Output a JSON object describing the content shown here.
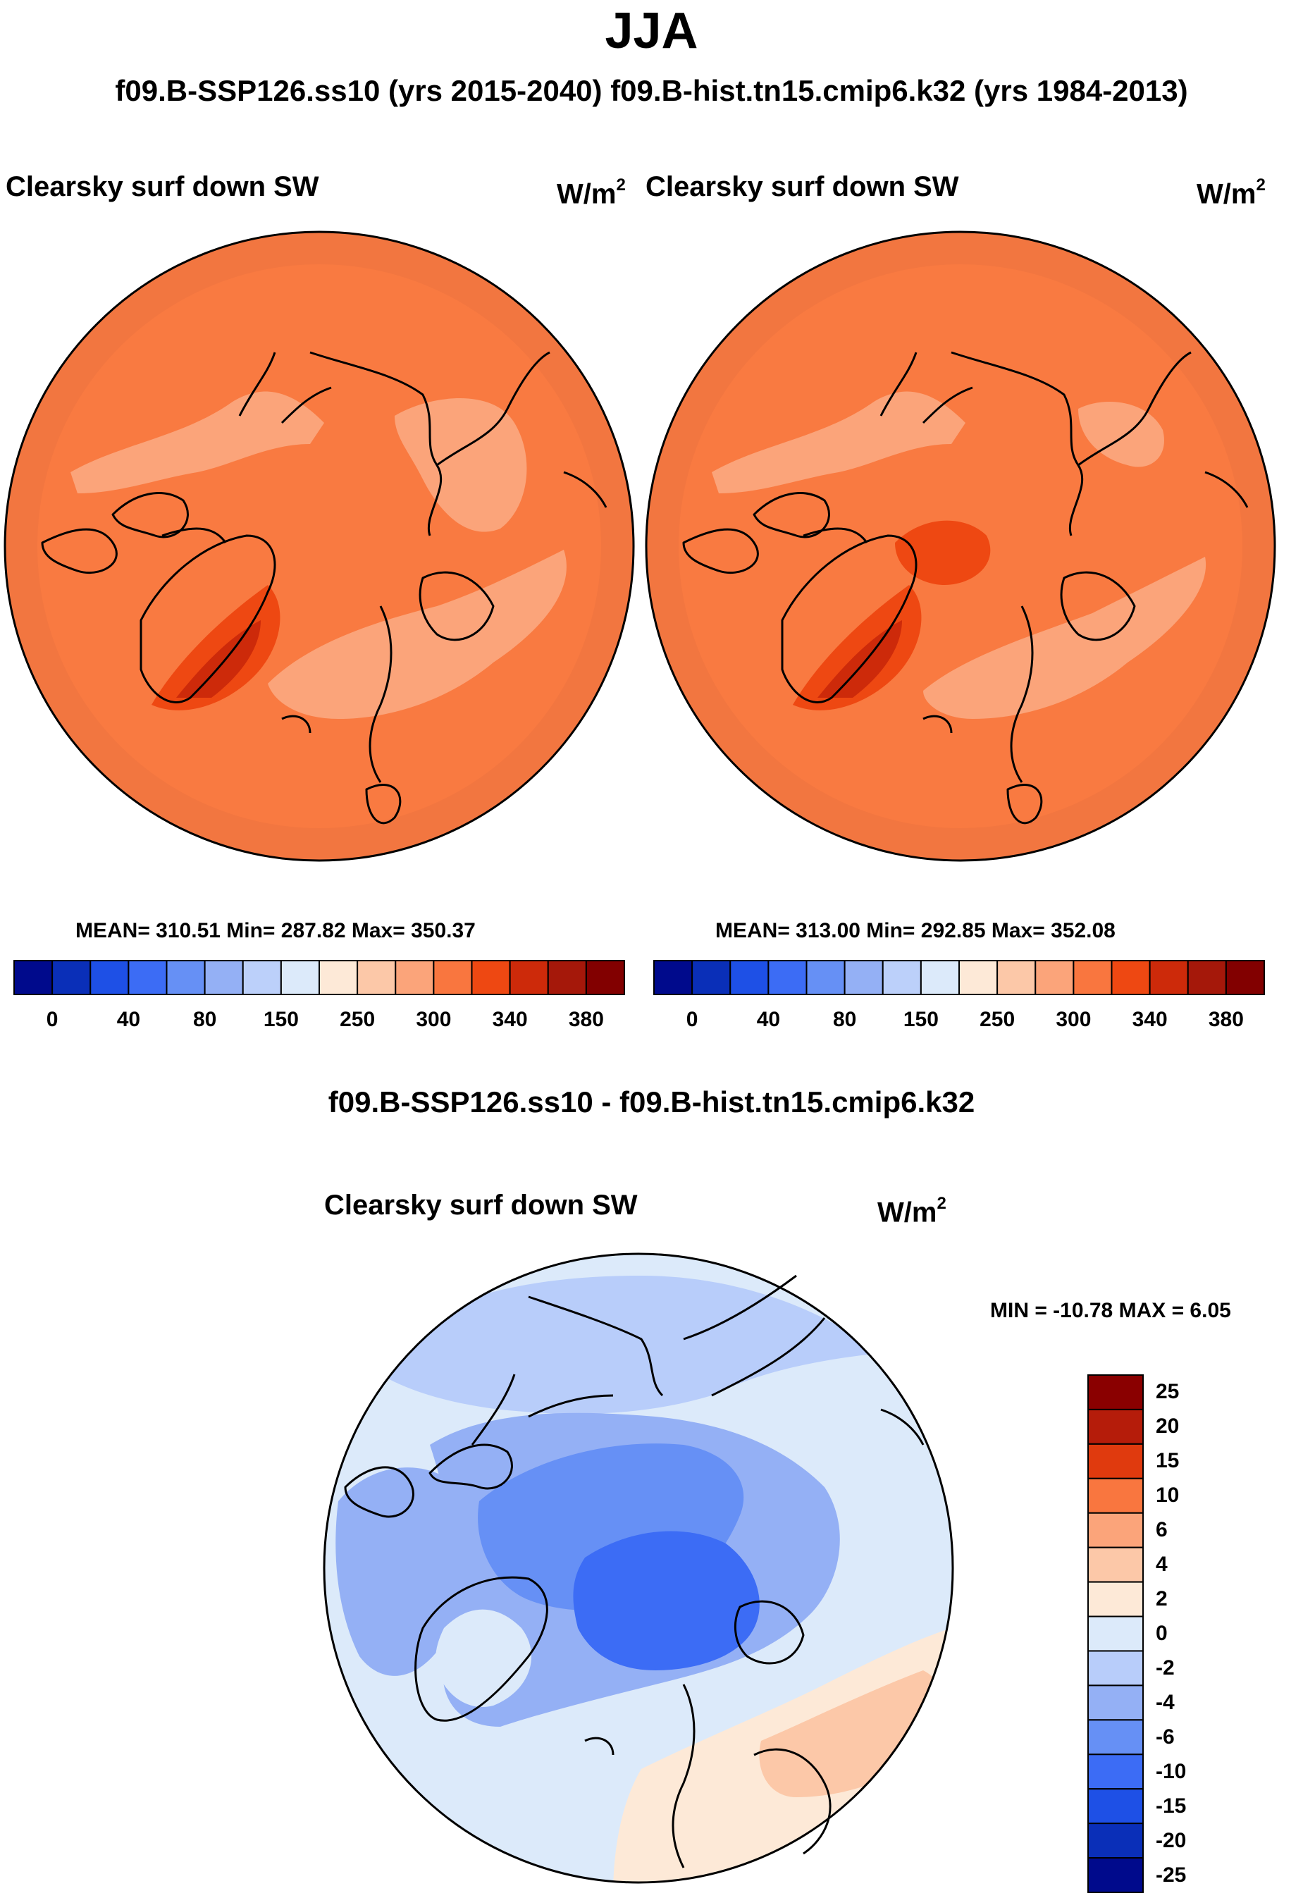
{
  "season": "JJA",
  "subtitle": "f09.B-SSP126.ss10 (yrs 2015-2040)  f09.B-hist.tn15.cmip6.k32 (yrs 1984-2013)",
  "left_panel": {
    "title": "Clearsky surf down SW",
    "units_base": "W/m",
    "units_exp": "2",
    "stats": "MEAN= 310.51  Min= 287.82  Max= 350.37"
  },
  "right_panel": {
    "title": "Clearsky surf down SW",
    "units_base": "W/m",
    "units_exp": "2",
    "stats": "MEAN= 313.00  Min= 292.85  Max= 352.08"
  },
  "abs_colorbar": {
    "colors": [
      "#000a8c",
      "#0a2fb8",
      "#1e50e6",
      "#3c6cf5",
      "#6690f5",
      "#94b0f5",
      "#bcd0fa",
      "#dceafa",
      "#fde9d7",
      "#fcc8a8",
      "#fba47a",
      "#f9763f",
      "#ee4812",
      "#cd2a0a",
      "#a5180a",
      "#820000"
    ],
    "labels": [
      "0",
      "40",
      "80",
      "150",
      "250",
      "300",
      "340",
      "380"
    ]
  },
  "diff_title": "f09.B-SSP126.ss10 - f09.B-hist.tn15.cmip6.k32",
  "diff_panel": {
    "title": "Clearsky surf down SW",
    "units_base": "W/m",
    "units_exp": "2",
    "stats": "MIN = -10.78 MAX =    6.05"
  },
  "diff_colorbar": {
    "colors_top_to_bottom": [
      "#8a0000",
      "#b51c0a",
      "#e03a0e",
      "#f9763f",
      "#fba47a",
      "#fcc8a8",
      "#fde9d7",
      "#dceafa",
      "#b8cdfa",
      "#94b0f5",
      "#6690f5",
      "#3c6cf5",
      "#1e50e6",
      "#0a2fb8",
      "#000a8c"
    ],
    "labels_top_to_bottom": [
      "25",
      "20",
      "15",
      "10",
      "6",
      "4",
      "2",
      "0",
      "-2",
      "-4",
      "-6",
      "-10",
      "-15",
      "-20",
      "-25"
    ]
  },
  "map_colors": {
    "outer_ring": "#f27640",
    "interior": "#f97a41",
    "light_patch": "#fba47a",
    "dark_patch": "#ee4812",
    "darkest_patch": "#cd2a0a",
    "diff_base": "#dceafa",
    "diff_light": "#b8cdfa",
    "diff_mid": "#94b0f5",
    "diff_dark": "#6690f5",
    "diff_darkest": "#3c6cf5",
    "diff_warm": "#fde9d7",
    "diff_warm2": "#fcc8a8"
  }
}
